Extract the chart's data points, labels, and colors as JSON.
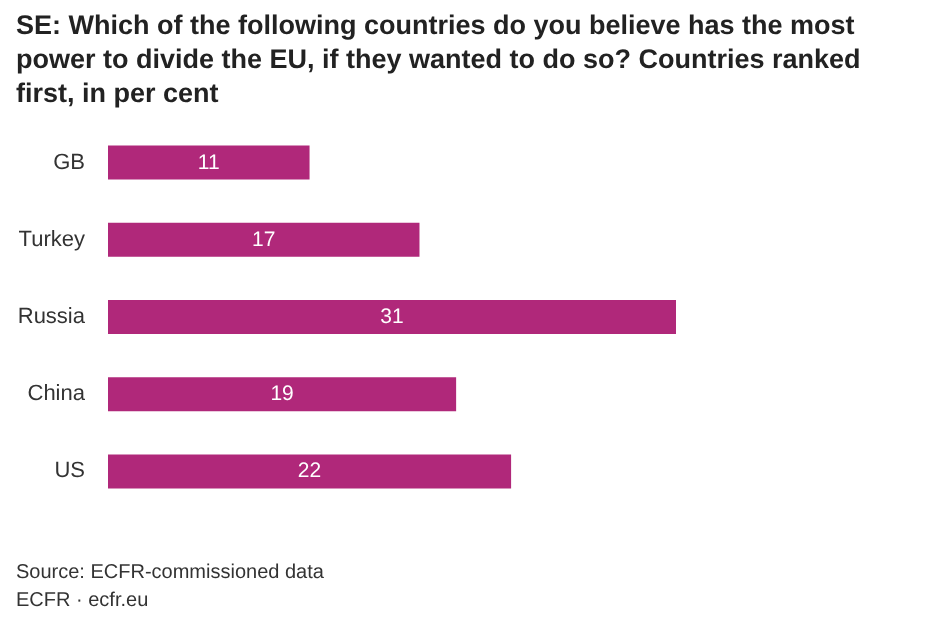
{
  "chart_data": {
    "type": "bar",
    "orientation": "horizontal",
    "title": "SE: Which of the following countries do you believe has the most power to divide the EU, if they wanted to do so? Countries ranked first, in per cent",
    "categories": [
      "GB",
      "Turkey",
      "Russia",
      "China",
      "US"
    ],
    "values": [
      11,
      17,
      31,
      19,
      22
    ],
    "color": "#b0287a",
    "data_labels": true,
    "annotations": [
      "Source: ECFR-commissioned data",
      "ECFR · ecfr.eu"
    ]
  }
}
